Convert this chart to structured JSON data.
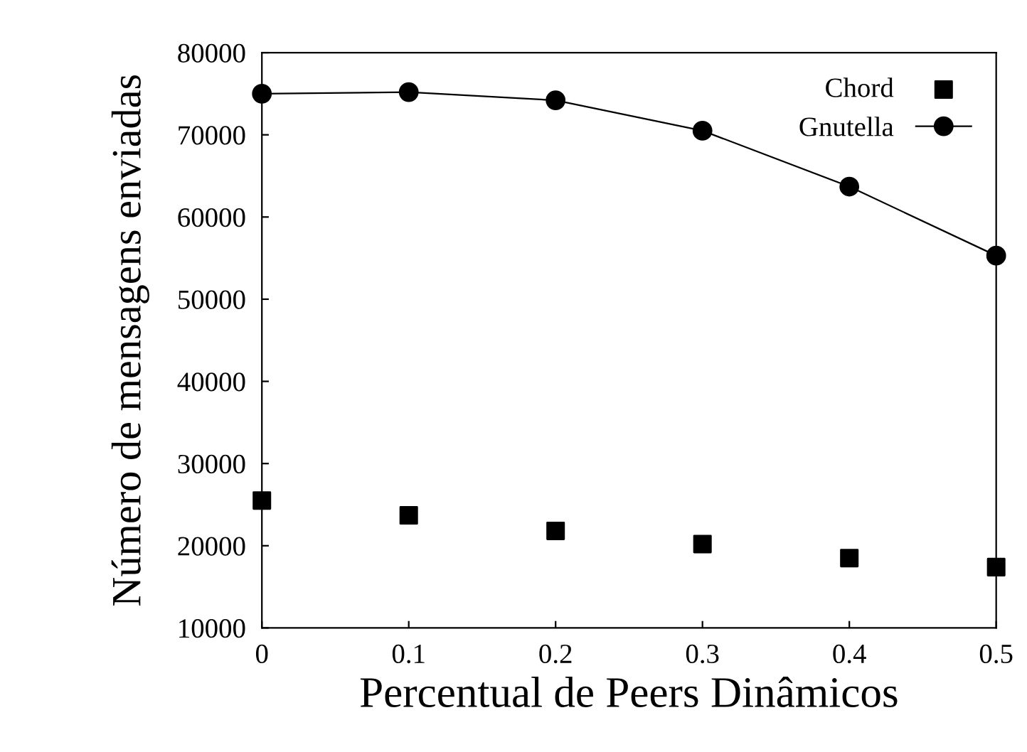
{
  "chart_data": {
    "type": "line",
    "xlabel": "Percentual de Peers Dinâmicos",
    "ylabel": "Número de mensagens enviadas",
    "x": [
      0,
      0.1,
      0.2,
      0.3,
      0.4,
      0.5
    ],
    "series": [
      {
        "name": "Chord",
        "type": "scatter",
        "color": "#000000",
        "marker": "square",
        "values": [
          25500,
          23700,
          21800,
          20200,
          18500,
          17400
        ]
      },
      {
        "name": "Gnutella",
        "color": "#000000",
        "marker": "circle",
        "values": [
          75000,
          75200,
          74200,
          70500,
          63700,
          55300
        ]
      }
    ],
    "xlim": [
      0,
      0.5
    ],
    "xticks": [
      0,
      0.1,
      0.2,
      0.3,
      0.4,
      0.5
    ],
    "ylim": [
      10000,
      80000
    ],
    "yticks": [
      10000,
      20000,
      30000,
      40000,
      50000,
      60000,
      70000,
      80000
    ],
    "grid": false,
    "legend": "top right"
  }
}
